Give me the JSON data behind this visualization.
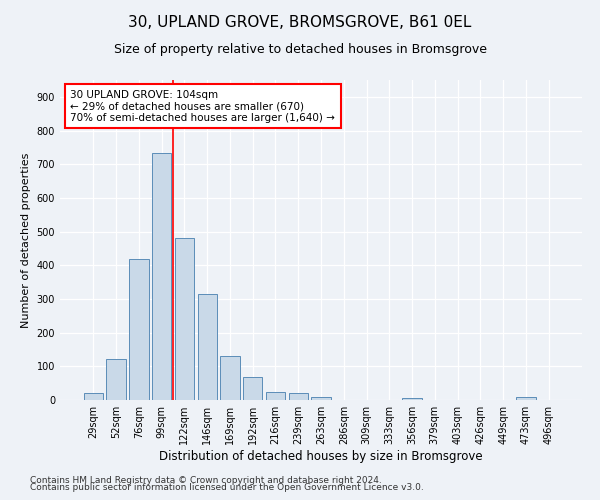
{
  "title1": "30, UPLAND GROVE, BROMSGROVE, B61 0EL",
  "title2": "Size of property relative to detached houses in Bromsgrove",
  "xlabel": "Distribution of detached houses by size in Bromsgrove",
  "ylabel": "Number of detached properties",
  "categories": [
    "29sqm",
    "52sqm",
    "76sqm",
    "99sqm",
    "122sqm",
    "146sqm",
    "169sqm",
    "192sqm",
    "216sqm",
    "239sqm",
    "263sqm",
    "286sqm",
    "309sqm",
    "333sqm",
    "356sqm",
    "379sqm",
    "403sqm",
    "426sqm",
    "449sqm",
    "473sqm",
    "496sqm"
  ],
  "values": [
    20,
    122,
    418,
    733,
    480,
    315,
    132,
    68,
    25,
    22,
    10,
    0,
    0,
    0,
    7,
    0,
    0,
    0,
    0,
    8,
    0
  ],
  "bar_color": "#c9d9e8",
  "bar_edge_color": "#5b8db8",
  "vline_x": 3.5,
  "vline_color": "red",
  "annotation_line1": "30 UPLAND GROVE: 104sqm",
  "annotation_line2": "← 29% of detached houses are smaller (670)",
  "annotation_line3": "70% of semi-detached houses are larger (1,640) →",
  "annotation_box_color": "white",
  "annotation_box_edge": "red",
  "ylim": [
    0,
    950
  ],
  "yticks": [
    0,
    100,
    200,
    300,
    400,
    500,
    600,
    700,
    800,
    900
  ],
  "footer1": "Contains HM Land Registry data © Crown copyright and database right 2024.",
  "footer2": "Contains public sector information licensed under the Open Government Licence v3.0.",
  "background_color": "#eef2f7",
  "plot_bg_color": "#eef2f7",
  "grid_color": "#ffffff",
  "title1_fontsize": 11,
  "title2_fontsize": 9,
  "xlabel_fontsize": 8.5,
  "ylabel_fontsize": 8,
  "tick_fontsize": 7,
  "footer_fontsize": 6.5,
  "annot_fontsize": 7.5
}
